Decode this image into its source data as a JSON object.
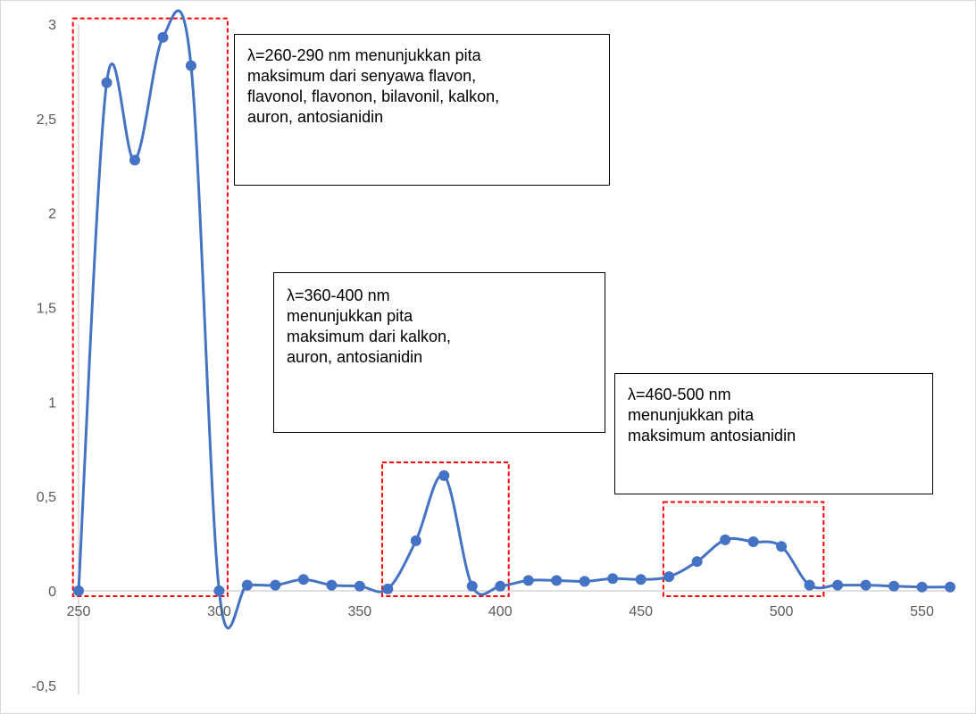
{
  "chart_data": {
    "type": "line",
    "title": "",
    "xlabel": "",
    "ylabel": "",
    "xlim": [
      250,
      560
    ],
    "ylim": [
      -0.5,
      3
    ],
    "x_ticks": [
      250,
      300,
      350,
      400,
      450,
      500,
      550
    ],
    "y_ticks": [
      -0.5,
      0,
      0.5,
      1,
      1.5,
      2,
      2.5,
      3
    ],
    "y_tick_labels": [
      "-0,5",
      "0",
      "0,5",
      "1",
      "1,5",
      "2",
      "2,5",
      "3"
    ],
    "x_tick_labels": [
      "250",
      "300",
      "350",
      "400",
      "450",
      "500",
      "550"
    ],
    "grid": false,
    "legend": "none",
    "series": [
      {
        "color": "#4472c4",
        "smooth": true,
        "markers": true,
        "points": [
          [
            250,
            0.0
          ],
          [
            260,
            2.69
          ],
          [
            270,
            2.28
          ],
          [
            280,
            2.93
          ],
          [
            290,
            2.78
          ],
          [
            300,
            0.0
          ],
          [
            310,
            0.03
          ],
          [
            320,
            0.03
          ],
          [
            330,
            0.06
          ],
          [
            340,
            0.03
          ],
          [
            350,
            0.025
          ],
          [
            360,
            0.01
          ],
          [
            370,
            0.265
          ],
          [
            380,
            0.61
          ],
          [
            390,
            0.025
          ],
          [
            400,
            0.025
          ],
          [
            410,
            0.055
          ],
          [
            420,
            0.055
          ],
          [
            430,
            0.05
          ],
          [
            440,
            0.065
          ],
          [
            450,
            0.06
          ],
          [
            460,
            0.075
          ],
          [
            470,
            0.155
          ],
          [
            480,
            0.27
          ],
          [
            490,
            0.26
          ],
          [
            500,
            0.235
          ],
          [
            510,
            0.03
          ],
          [
            520,
            0.03
          ],
          [
            530,
            0.03
          ],
          [
            540,
            0.025
          ],
          [
            550,
            0.02
          ],
          [
            560,
            0.02
          ]
        ]
      }
    ],
    "highlight_regions": [
      {
        "x": [
          248,
          303
        ],
        "y": [
          0,
          3.03
        ],
        "color": "#ff0000"
      },
      {
        "x": [
          358,
          403
        ],
        "y": [
          0,
          0.68
        ],
        "color": "#ff0000"
      },
      {
        "x": [
          458,
          515
        ],
        "y": [
          0,
          0.47
        ],
        "color": "#ff0000"
      }
    ],
    "annotations": [
      {
        "text": "λ=260-290 nm menunjukkan pita\nmaksimum dari senyawa flavon,\nflavonol, flavonon, bilavonil, kalkon,\nauron, antosianidin"
      },
      {
        "text": "λ=360-400 nm\nmenunjukkan pita\nmaksimum dari kalkon,\nauron, antosianidin"
      },
      {
        "text": "λ=460-500 nm\nmenunjukkan pita\nmaksimum antosianidin"
      }
    ]
  }
}
